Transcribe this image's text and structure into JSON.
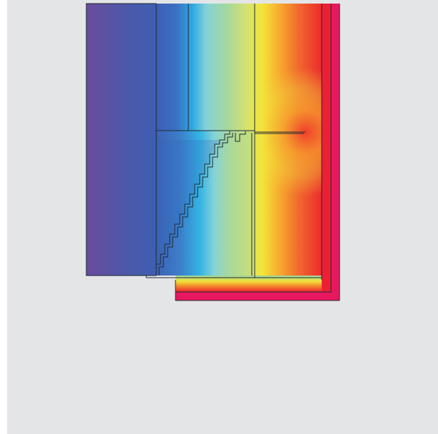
{
  "figure": {
    "kind": "thermal-simulation-isotherm-plot",
    "background_color": "#e4e5e7",
    "page_color": "#ffffff",
    "outline_color": "#1e2a33",
    "color_scale": {
      "cold": "#6b4a9c",
      "stops": [
        "#6b4a9c",
        "#4a57a6",
        "#3b66b8",
        "#2aa6e0",
        "#7fd0dc",
        "#9fd6a6",
        "#cfe07a",
        "#f2e63a",
        "#f7a52b",
        "#ef3e2c",
        "#e8185f"
      ],
      "hot": "#e8185f"
    }
  }
}
